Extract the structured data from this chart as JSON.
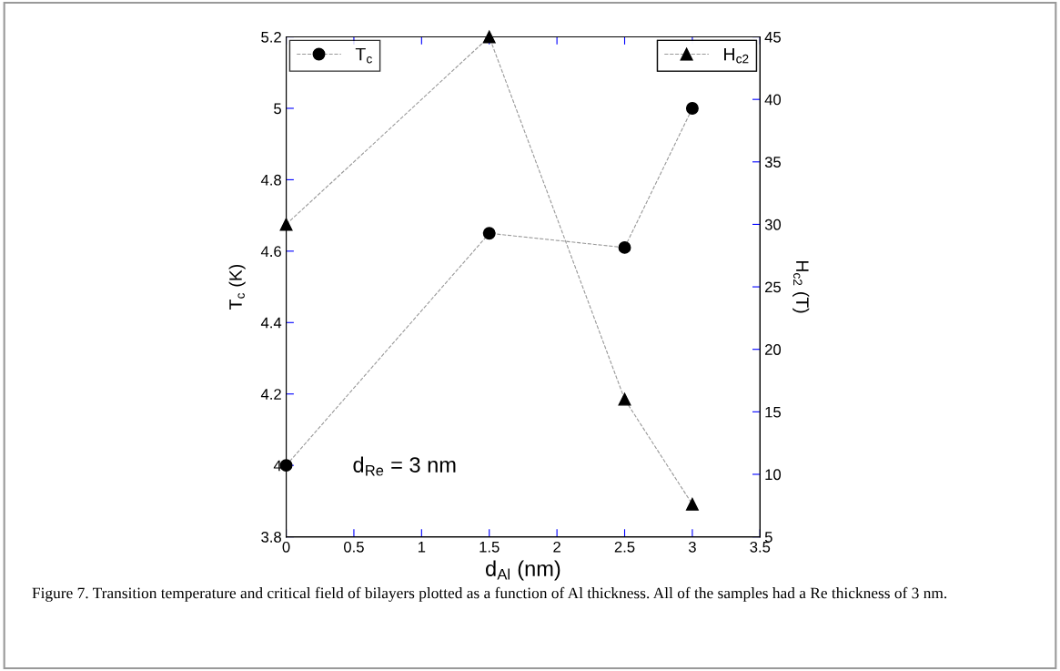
{
  "chart_data": {
    "type": "line",
    "xlabel": "d$_{Al}$ (nm)",
    "ylabel": "T$_{c}$ (K)",
    "y2label": "H$_{c2}$ (T)",
    "x": [
      0,
      1.5,
      2.5,
      3
    ],
    "series": [
      {
        "name": "T$_{c}$",
        "color": "#000000",
        "values": [
          4.0,
          4.65,
          4.61,
          5.0
        ],
        "marker": "circle"
      },
      {
        "name": "H$_{c2}$",
        "color": "#000000",
        "values": [
          30,
          45,
          16,
          7.6
        ],
        "marker": "triangle",
        "axis": "y2"
      }
    ],
    "line_style": "dashed",
    "xlim": [
      0,
      3.5
    ],
    "xticks": [
      0,
      0.5,
      1,
      1.5,
      2,
      2.5,
      3,
      3.5
    ],
    "ylim": [
      3.8,
      5.2
    ],
    "yticks": [
      3.8,
      4,
      4.2,
      4.4,
      4.6,
      4.8,
      5,
      5.2
    ],
    "y2lim": [
      5,
      45
    ],
    "y2ticks": [
      5,
      10,
      15,
      20,
      25,
      30,
      35,
      40,
      45
    ],
    "grid": false,
    "legend": "top",
    "annotations": [
      "d$_{Re}$ = 3 nm",
      "Figure 7. Transition temperature and critical field of bilayers plotted as a function of Al thickness. All of the samples had a Re thickness of 3 nm."
    ]
  }
}
